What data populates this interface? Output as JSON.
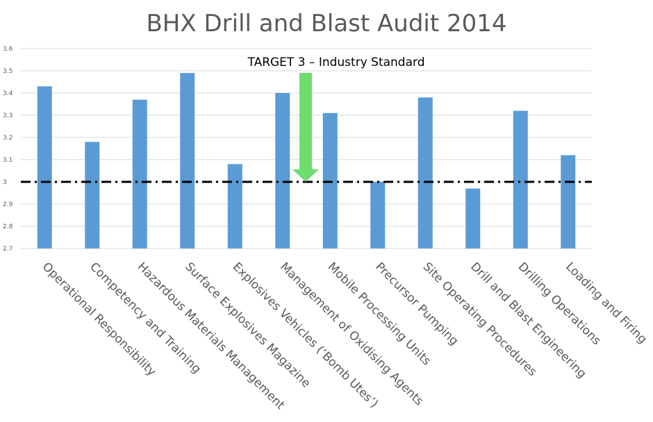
{
  "chart_data": {
    "type": "bar",
    "title": "BHX Drill and Blast Audit 2014",
    "xlabel": "",
    "ylabel": "",
    "ylim": [
      2.7,
      3.6
    ],
    "yticks": [
      "2.7",
      "2.8",
      "2.9",
      "3",
      "3.1",
      "3.2",
      "3.3",
      "3.4",
      "3.5",
      "3.6"
    ],
    "grid": true,
    "legend": "none",
    "categories": [
      "Operational Responsibility",
      "Competency and Training",
      "Hazardous Materials Management",
      "Surface Explosives Magazine",
      "Explosives Vehicles (‘Bomb Utes’)",
      "Management of Oxidising Agents",
      "Mobile Processing Units",
      "Precursor Pumping",
      "Site Operating Procedures",
      "Drill and Blast Engineering",
      "Drilling Operations",
      "Loading and Firing"
    ],
    "values": [
      3.43,
      3.18,
      3.37,
      3.49,
      3.08,
      3.4,
      3.31,
      3.0,
      3.38,
      2.97,
      3.32,
      3.12
    ],
    "target": {
      "value": 3,
      "label": "TARGET 3 – Industry Standard"
    },
    "colors": {
      "bar": "#5b9bd5",
      "arrow": "#6fdc6f",
      "target_line": "#000000",
      "grid": "#d9d9d9",
      "title": "#595959",
      "tick": "#595959"
    }
  }
}
